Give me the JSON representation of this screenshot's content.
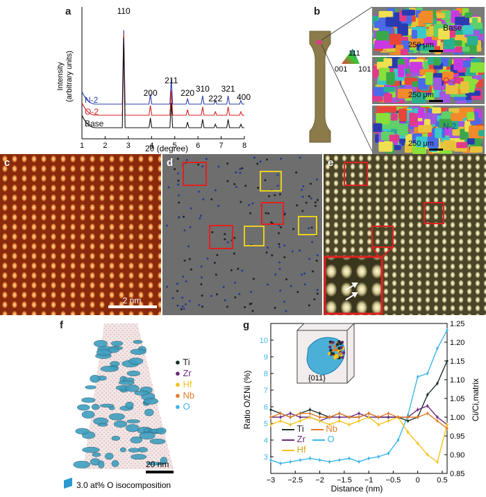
{
  "panel_labels": {
    "a": "a",
    "b": "b",
    "c": "c",
    "d": "d",
    "e": "e",
    "f": "f",
    "g": "g"
  },
  "colors": {
    "base": "#111111",
    "o2": "#d42222",
    "n2": "#2b3da8",
    "ti": "#1a2f2a",
    "zr": "#6a2a7a",
    "hf": "#f3c21a",
    "nb": "#e07c2a",
    "o": "#3bb6e8"
  },
  "panel_a": {
    "ylabel_line1": "Intensity",
    "ylabel_line2": "(arbitrary units)",
    "xlabel": "2θ (degree)",
    "ticks": [
      "1",
      "2",
      "3",
      "4",
      "5",
      "6",
      "7",
      "8"
    ],
    "peaks": [
      "110",
      "200",
      "211",
      "220",
      "310",
      "222",
      "321",
      "400"
    ],
    "series_labels": {
      "n2": "N-2",
      "o2": "O-2",
      "base": "Base"
    }
  },
  "panel_b": {
    "triangle": {
      "top": "111",
      "left": "001",
      "right": "101"
    },
    "maps": [
      {
        "label": "Base",
        "scale": "250 μm"
      },
      {
        "label": "O-2",
        "scale": "250 μm"
      },
      {
        "label": "N-2",
        "scale": "250 μm"
      }
    ]
  },
  "panel_c": {
    "scale": "2 nm"
  },
  "panel_f": {
    "legend": [
      {
        "name": "Ti",
        "color": "#1a2f2a"
      },
      {
        "name": "Zr",
        "color": "#6a2a7a"
      },
      {
        "name": "Hf",
        "color": "#f3c21a"
      },
      {
        "name": "Nb",
        "color": "#e07c2a"
      },
      {
        "name": "O",
        "color": "#3bb6e8"
      }
    ],
    "scale": "20 nm",
    "iso": "3.0 at% O isocomposition"
  },
  "panel_g": {
    "inset_label": "{011}",
    "legend": [
      {
        "name": "Ti",
        "color": "#1a2f2a"
      },
      {
        "name": "Nb",
        "color": "#e07c2a"
      },
      {
        "name": "Zr",
        "color": "#6a2a7a"
      },
      {
        "name": "O",
        "color": "#3bb6e8"
      },
      {
        "name": "Hf",
        "color": "#f3c21a"
      }
    ]
  },
  "chart_data": [
    {
      "type": "line",
      "xlabel": "2θ (degree)",
      "ylabel": "Intensity (arbitrary units)",
      "xlim": [
        1,
        8
      ],
      "peaks": [
        {
          "label": "110",
          "x": 2.8
        },
        {
          "label": "200",
          "x": 3.95
        },
        {
          "label": "211",
          "x": 4.85
        },
        {
          "label": "220",
          "x": 5.55
        },
        {
          "label": "310",
          "x": 6.2
        },
        {
          "label": "222",
          "x": 6.75
        },
        {
          "label": "321",
          "x": 7.3
        },
        {
          "label": "400",
          "x": 7.85
        }
      ],
      "series": [
        {
          "name": "N-2"
        },
        {
          "name": "O-2"
        },
        {
          "name": "Base"
        }
      ]
    },
    {
      "type": "line",
      "xlabel": "Distance (nm)",
      "ylabel": "Ratio O/ΣNi (%)",
      "y2label": "Ci/Ci,matrix",
      "xlim": [
        -3,
        0.6
      ],
      "ylim": [
        2,
        11
      ],
      "y2lim": [
        0.85,
        1.25
      ],
      "xticks": [
        "−3",
        "−2.5",
        "−2",
        "−1.5",
        "−1",
        "−0.5",
        "0",
        "0.5"
      ],
      "yticks": [
        "3",
        "4",
        "5",
        "6",
        "7",
        "8",
        "9",
        "10"
      ],
      "y2ticks": [
        "0.85",
        "0.90",
        "0.95",
        "1.00",
        "1.05",
        "1.10",
        "1.15",
        "1.20",
        "1.25"
      ],
      "x": [
        -3,
        -2.8,
        -2.6,
        -2.4,
        -2.2,
        -2,
        -1.8,
        -1.6,
        -1.4,
        -1.2,
        -1,
        -0.8,
        -0.6,
        -0.4,
        -0.2,
        0,
        0.2,
        0.4,
        0.6
      ],
      "series": [
        {
          "name": "O",
          "axis": "left",
          "values": [
            2.8,
            2.6,
            2.7,
            2.8,
            2.9,
            2.8,
            2.7,
            2.8,
            2.9,
            2.7,
            2.9,
            3.0,
            3.2,
            4.0,
            5.5,
            7.8,
            8.0,
            9.5,
            10.6
          ]
        },
        {
          "name": "Ti",
          "axis": "right",
          "values": [
            1.02,
            1.01,
            1.0,
            1.01,
            1.02,
            1.01,
            1.0,
            1.01,
            1.0,
            1.0,
            1.01,
            1.0,
            1.0,
            1.0,
            0.99,
            1.0,
            1.06,
            1.09,
            1.15
          ]
        },
        {
          "name": "Zr",
          "axis": "right",
          "values": [
            1.0,
            1.0,
            1.01,
            1.0,
            1.0,
            0.99,
            1.0,
            1.0,
            1.0,
            1.01,
            1.0,
            1.0,
            1.0,
            1.0,
            1.0,
            1.02,
            1.03,
            1.0,
            0.98
          ]
        },
        {
          "name": "Hf",
          "axis": "right",
          "values": [
            0.98,
            0.99,
            0.98,
            0.99,
            1.0,
            0.99,
            0.98,
            0.99,
            0.98,
            0.99,
            1.0,
            0.98,
            0.99,
            1.0,
            0.96,
            0.93,
            0.9,
            0.88,
            0.98
          ]
        },
        {
          "name": "Nb",
          "axis": "right",
          "values": [
            1.0,
            1.01,
            1.0,
            1.01,
            1.01,
            1.0,
            1.0,
            1.01,
            1.0,
            1.0,
            1.01,
            1.0,
            1.01,
            1.0,
            1.0,
            1.0,
            1.01,
            0.99,
            0.97
          ]
        }
      ]
    }
  ]
}
